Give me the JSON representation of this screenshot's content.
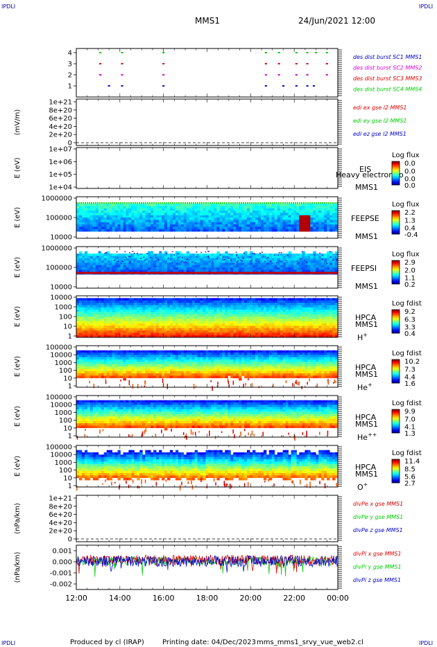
{
  "corner_label": "IPDLI",
  "header": {
    "spacecraft": "MMS1",
    "datetime": "24/Jun/2021 12:00"
  },
  "footer": {
    "producer": "Produced by cl (IRAP)",
    "print_date": "Printing date: 04/Dec/2023",
    "filename": "mms_mms1_srvy_vue_web2.cl"
  },
  "colors": {
    "red": "#dd0000",
    "green": "#00cc00",
    "blue": "#0000cc",
    "magenta": "#dd00dd"
  },
  "chart_data": [
    {
      "id": "burst",
      "type": "scatter",
      "ylabel": "",
      "ytick_labels": [
        "4",
        "3",
        "2",
        "1"
      ],
      "legend": [
        {
          "label": "des dist burst SC1 MMS1",
          "color": "blue"
        },
        {
          "label": "des dist burst SC2 MMS2",
          "color": "magenta"
        },
        {
          "label": "des dist burst SC3 MMS3",
          "color": "red"
        },
        {
          "label": "des dist burst SC4 MMS4",
          "color": "green"
        }
      ],
      "series": [
        {
          "name": "SC1",
          "y": 1,
          "color": "blue",
          "x": [
            13.5,
            14.1,
            16.0,
            20.7,
            21.5,
            22.1,
            22.6,
            22.9
          ]
        },
        {
          "name": "SC2",
          "y": 2,
          "color": "magenta",
          "x": [
            13.1,
            14.1,
            16.0,
            20.7,
            21.3,
            22.1,
            22.6,
            23.5
          ]
        },
        {
          "name": "SC3",
          "y": 3,
          "color": "red",
          "x": [
            13.1,
            14.1,
            16.0,
            20.7,
            21.3,
            22.1,
            22.6,
            23.5
          ]
        },
        {
          "name": "SC4",
          "y": 4,
          "color": "green",
          "x": [
            13.1,
            14.1,
            16.0,
            20.7,
            21.3,
            22.1,
            22.6,
            23.0,
            23.5
          ]
        }
      ]
    },
    {
      "id": "edi",
      "type": "line",
      "ylabel": "(mV/m)",
      "ytick_labels": [
        "1e+21",
        "8e+20",
        "6e+20",
        "4e+20",
        "2e+20",
        "0"
      ],
      "legend": [
        {
          "label": "edi ex gse l2 MMS1",
          "color": "red"
        },
        {
          "label": "edi ey gse l2 MMS1",
          "color": "green"
        },
        {
          "label": "edi ez gse l2 MMS1",
          "color": "blue"
        }
      ]
    },
    {
      "id": "eis",
      "type": "heatmap",
      "ylabel": "E (eV)",
      "ytick_labels": [
        "1e+07",
        "1e+06",
        "1e+05",
        "1e+04"
      ],
      "instrument": [
        "EIS",
        "MMS1"
      ],
      "overlay_text": "Heavy electron to",
      "colorbar": {
        "title": "Log flux",
        "ticks": [
          "0.0",
          "0.0",
          "0.0",
          "0.0"
        ]
      }
    },
    {
      "id": "feepse",
      "type": "heatmap",
      "ylabel": "E (eV)",
      "ytick_labels": [
        "1000000",
        "100000",
        "10000"
      ],
      "instrument": [
        "FEEPSE",
        "MMS1"
      ],
      "colorbar": {
        "title": "Log flux",
        "ticks": [
          "2.2",
          "1.3",
          "0.4",
          "-0.4"
        ]
      }
    },
    {
      "id": "feepsi",
      "type": "heatmap",
      "ylabel": "E (eV)",
      "ytick_labels": [
        "1000000",
        "100000",
        "10000"
      ],
      "instrument": [
        "FEEPSI",
        "MMS1"
      ],
      "colorbar": {
        "title": "Log flux",
        "ticks": [
          "2.9",
          "2.0",
          "1.1",
          "0.2"
        ]
      }
    },
    {
      "id": "hpca_h",
      "type": "heatmap",
      "ylabel": "E (eV)",
      "ytick_labels": [
        "10000",
        "1000",
        "100",
        "10",
        "1"
      ],
      "instrument": [
        "HPCA",
        "MMS1"
      ],
      "species": "H",
      "species_charge": "+",
      "colorbar": {
        "title": "Log fdist",
        "ticks": [
          "9.2",
          "6.3",
          "3.3",
          "0.4"
        ]
      }
    },
    {
      "id": "hpca_he1",
      "type": "heatmap",
      "ylabel": "E (eV)",
      "ytick_labels": [
        "100000",
        "10000",
        "1000",
        "100",
        "10",
        "1"
      ],
      "instrument": [
        "HPCA",
        "MMS1"
      ],
      "species": "He",
      "species_charge": "+",
      "colorbar": {
        "title": "Log fdist",
        "ticks": [
          "10.2",
          "7.3",
          "4.4",
          "1.6"
        ]
      }
    },
    {
      "id": "hpca_he2",
      "type": "heatmap",
      "ylabel": "E (eV)",
      "ytick_labels": [
        "100000",
        "10000",
        "1000",
        "100",
        "10",
        "1"
      ],
      "instrument": [
        "HPCA",
        "MMS1"
      ],
      "species": "He",
      "species_charge": "++",
      "colorbar": {
        "title": "Log fdist",
        "ticks": [
          "9.9",
          "7.0",
          "4.1",
          "1.3"
        ]
      }
    },
    {
      "id": "hpca_o",
      "type": "heatmap",
      "ylabel": "E (eV)",
      "ytick_labels": [
        "100000",
        "10000",
        "1000",
        "100",
        "10",
        "1"
      ],
      "instrument": [
        "HPCA",
        "MMS1"
      ],
      "species": "O",
      "species_charge": "+",
      "colorbar": {
        "title": "Log fdist",
        "ticks": [
          "11.4",
          "8.5",
          "5.6",
          "2.7"
        ]
      }
    },
    {
      "id": "divpe",
      "type": "line",
      "ylabel": "(nPa/km)",
      "ytick_labels": [
        "1e+21",
        "8e+20",
        "6e+20",
        "4e+20",
        "2e+20",
        "0"
      ],
      "legend": [
        {
          "label": "divPe x gse MMS1",
          "color": "red"
        },
        {
          "label": "divPe y gse MMS1",
          "color": "green"
        },
        {
          "label": "divPe z gse MMS1",
          "color": "blue"
        }
      ]
    },
    {
      "id": "divpi",
      "type": "line",
      "ylabel": "(nPa/km)",
      "ytick_labels": [
        "0.001",
        "0.000",
        "-0.001",
        "-0.002"
      ],
      "ylim": [
        -0.0025,
        0.0015
      ],
      "legend": [
        {
          "label": "divPi x gse MMS1",
          "color": "red"
        },
        {
          "label": "divPi y gse MMS1",
          "color": "green"
        },
        {
          "label": "divPi z gse MMS1",
          "color": "blue"
        }
      ]
    }
  ],
  "time_axis": {
    "labels": [
      "12:00",
      "14:00",
      "16:00",
      "18:00",
      "20:00",
      "22:00",
      "00:00"
    ],
    "range_hours": [
      12,
      24
    ]
  }
}
